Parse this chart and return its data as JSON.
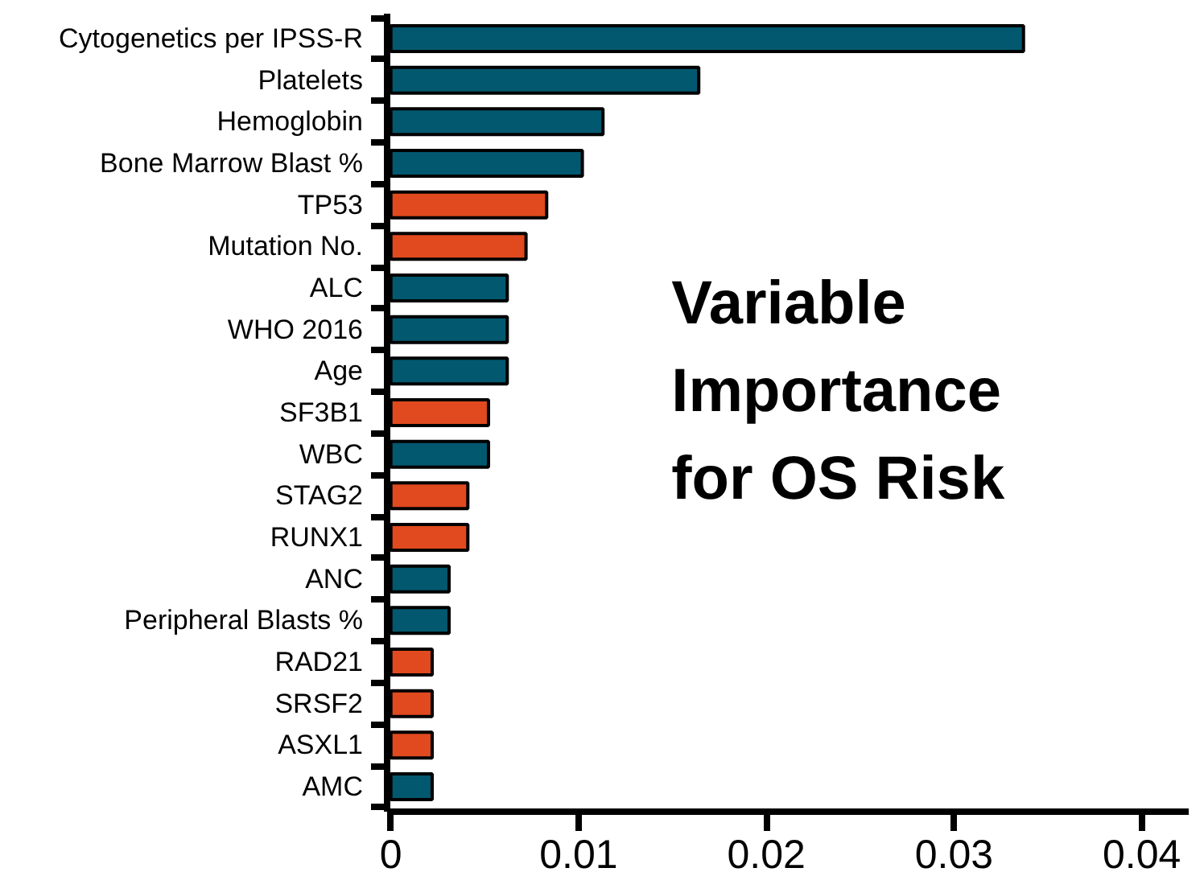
{
  "chart_data": {
    "type": "bar",
    "orientation": "horizontal",
    "title": "Variable Importance for OS Risk",
    "categories": [
      "Cytogenetics per IPSS-R",
      "Platelets",
      "Hemoglobin",
      "Bone Marrow Blast %",
      "TP53",
      "Mutation No.",
      "ALC",
      "WHO 2016",
      "Age",
      "SF3B1",
      "WBC",
      "STAG2",
      "RUNX1",
      "ANC",
      "Peripheral Blasts %",
      "RAD21",
      "SRSF2",
      "ASXL1",
      "AMC"
    ],
    "values": [
      0.0337,
      0.0164,
      0.0113,
      0.0102,
      0.0083,
      0.0072,
      0.0062,
      0.0062,
      0.0062,
      0.0052,
      0.0052,
      0.0041,
      0.0041,
      0.0031,
      0.0031,
      0.0022,
      0.0022,
      0.0022,
      0.0022
    ],
    "colors": [
      "#02586f",
      "#02586f",
      "#02586f",
      "#02586f",
      "#e04a1e",
      "#e04a1e",
      "#02586f",
      "#02586f",
      "#02586f",
      "#e04a1e",
      "#02586f",
      "#e04a1e",
      "#e04a1e",
      "#02586f",
      "#02586f",
      "#e04a1e",
      "#e04a1e",
      "#e04a1e",
      "#02586f"
    ],
    "xlim": [
      -0.0002,
      0.0425
    ],
    "xticks": [
      0,
      0.01,
      0.02,
      0.03,
      0.04
    ]
  }
}
